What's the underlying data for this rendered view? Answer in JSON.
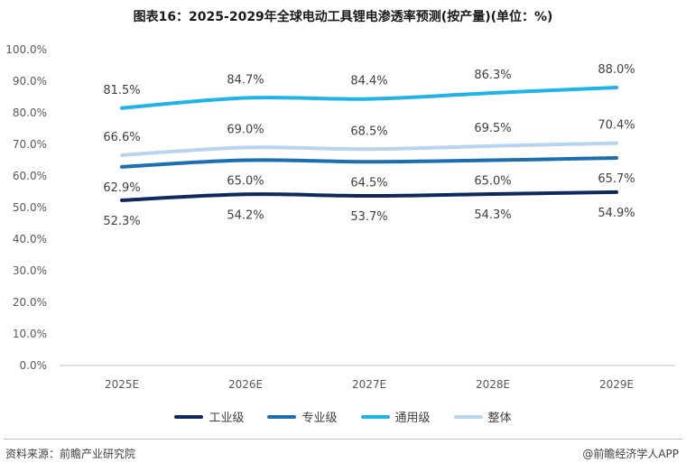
{
  "title": "图表16：2025-2029年全球电动工具锂电渗透率预测(按产量)(单位：%)",
  "footer": {
    "source": "资料来源：前瞻产业研究院",
    "brand": "@前瞻经济学人APP"
  },
  "chart_data": {
    "type": "line",
    "categories": [
      "2025E",
      "2026E",
      "2027E",
      "2028E",
      "2029E"
    ],
    "ylim": [
      0,
      100
    ],
    "yticks": [
      "0.0%",
      "10.0%",
      "20.0%",
      "30.0%",
      "40.0%",
      "50.0%",
      "60.0%",
      "70.0%",
      "80.0%",
      "90.0%",
      "100.0%"
    ],
    "grid": false,
    "legend_position": "bottom",
    "series": [
      {
        "name": "工业级",
        "values": [
          52.3,
          54.2,
          53.7,
          54.3,
          54.9
        ],
        "labels": [
          "52.3%",
          "54.2%",
          "53.7%",
          "54.3%",
          "54.9%"
        ],
        "color": "#0d2a5e",
        "label_position": "below"
      },
      {
        "name": "专业级",
        "values": [
          62.9,
          65.0,
          64.5,
          65.0,
          65.7
        ],
        "labels": [
          "62.9%",
          "65.0%",
          "64.5%",
          "65.0%",
          "65.7%"
        ],
        "color": "#1b6fb0",
        "label_position": "below"
      },
      {
        "name": "通用级",
        "values": [
          81.5,
          84.7,
          84.4,
          86.3,
          88.0
        ],
        "labels": [
          "81.5%",
          "84.7%",
          "84.4%",
          "86.3%",
          "88.0%"
        ],
        "color": "#1fb3e6",
        "label_position": "above"
      },
      {
        "name": "整体",
        "values": [
          66.6,
          69.0,
          68.5,
          69.5,
          70.4
        ],
        "labels": [
          "66.6%",
          "69.0%",
          "68.5%",
          "69.5%",
          "70.4%"
        ],
        "color": "#b9d4f0",
        "label_position": "above"
      }
    ]
  }
}
